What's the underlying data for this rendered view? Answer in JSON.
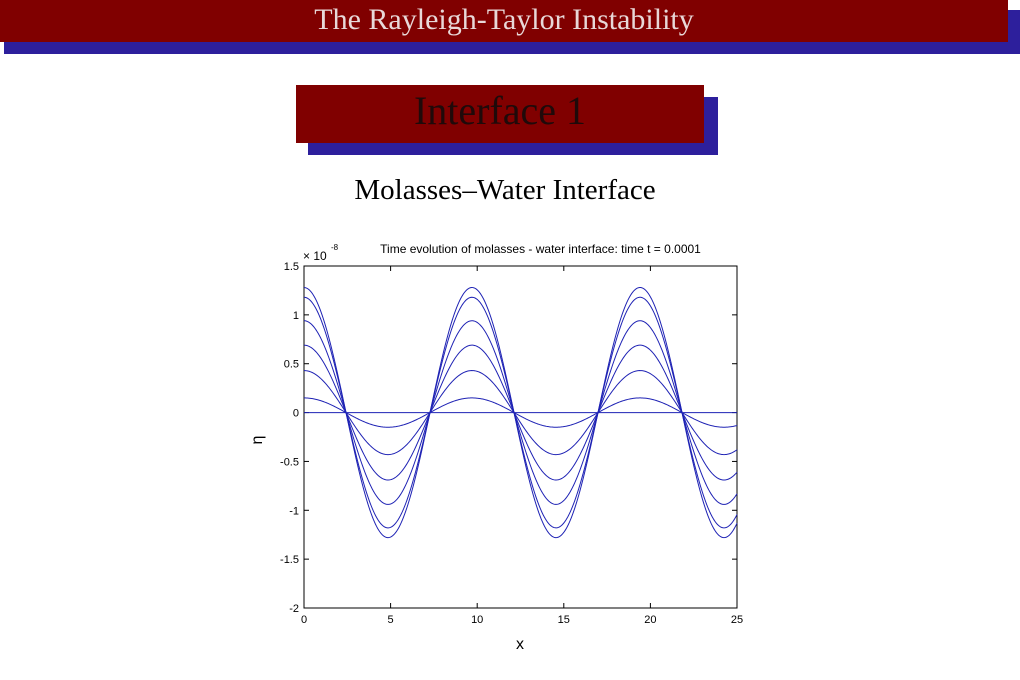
{
  "slide": {
    "title": "The Rayleigh-Taylor Instability",
    "subtitle": "Interface 1",
    "heading": "Molasses–Water Interface"
  },
  "colors": {
    "maroon": "#800000",
    "shadow_blue": "#2d1f9c",
    "line_blue": "#1e22b4"
  },
  "chart_data": {
    "type": "line",
    "title": "Time evolution of molasses - water interface: time t = 0.0001",
    "xlabel": "x",
    "ylabel": "η",
    "y_multiplier": "× 10",
    "y_multiplier_exponent": "-8",
    "xlim": [
      0,
      25
    ],
    "ylim": [
      -2,
      1.5
    ],
    "xticks": [
      0,
      5,
      10,
      15,
      20,
      25
    ],
    "xtick_labels": [
      "0",
      "5",
      "10",
      "15",
      "20",
      "25"
    ],
    "yticks": [
      -2,
      -1.5,
      -1,
      -0.5,
      0,
      0.5,
      1,
      1.5
    ],
    "ytick_labels": [
      "-2",
      "-1.5",
      "-1",
      "-0.5",
      "0",
      "0.5",
      "1",
      "1.5"
    ],
    "grid": false,
    "curve_function": "amplitude * cos(2*pi*x/9.7)",
    "series": [
      {
        "amplitude": 0
      },
      {
        "amplitude": 0.15
      },
      {
        "amplitude": 0.43
      },
      {
        "amplitude": 0.69
      },
      {
        "amplitude": 0.94
      },
      {
        "amplitude": 1.18
      },
      {
        "amplitude": 1.28
      }
    ]
  }
}
